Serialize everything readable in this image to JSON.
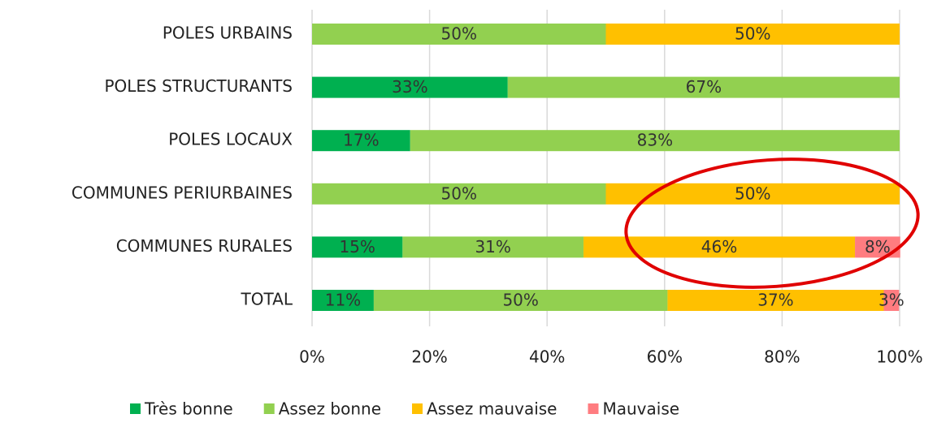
{
  "chart_data": {
    "type": "stacked_bar_horizontal",
    "categories": [
      "POLES URBAINS",
      "POLES STRUCTURANTS",
      "POLES LOCAUX",
      "COMMUNES PERIURBAINES",
      "COMMUNES RURALES",
      "TOTAL"
    ],
    "series": [
      {
        "name": "Très bonne",
        "color": "#00b050",
        "values": [
          0,
          33.3,
          16.7,
          0,
          15.4,
          10.5
        ],
        "value_labels": [
          null,
          "33%",
          "17%",
          null,
          "15%",
          "11%"
        ]
      },
      {
        "name": "Assez bonne",
        "color": "#92d050",
        "values": [
          50,
          66.7,
          83.3,
          50,
          30.8,
          50
        ],
        "value_labels": [
          "50%",
          "67%",
          "83%",
          "50%",
          "31%",
          "50%"
        ]
      },
      {
        "name": "Assez mauvaise",
        "color": "#ffc000",
        "values": [
          50,
          0,
          0,
          50,
          46.2,
          36.8
        ],
        "value_labels": [
          "50%",
          null,
          null,
          "50%",
          "46%",
          "37%"
        ]
      },
      {
        "name": "Mauvaise",
        "color": "#ff7c80",
        "values": [
          0,
          0,
          0,
          0,
          7.7,
          2.6
        ],
        "value_labels": [
          null,
          null,
          null,
          null,
          "8%",
          "3%"
        ]
      }
    ],
    "xlim": [
      0,
      100
    ],
    "xticks": [
      {
        "value": 0,
        "label": "0%"
      },
      {
        "value": 20,
        "label": "20%"
      },
      {
        "value": 40,
        "label": "40%"
      },
      {
        "value": 60,
        "label": "60%"
      },
      {
        "value": 80,
        "label": "80%"
      },
      {
        "value": 100,
        "label": "100%"
      }
    ],
    "grid": true,
    "legend": "bottom"
  }
}
